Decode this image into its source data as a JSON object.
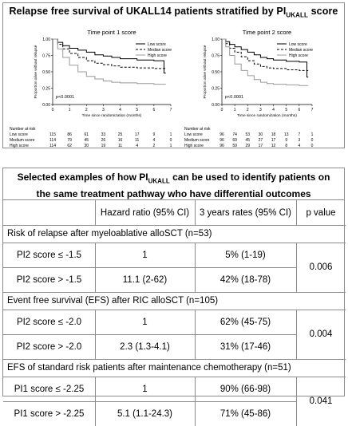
{
  "figure": {
    "title_main": "Relapse free survival of UKALL14 patients stratified by PI",
    "title_sub": "UKALL",
    "title_end": " score"
  },
  "chart_data": [
    {
      "type": "line",
      "subtitle": "Time point 1 score",
      "xlabel": "Time since randomization (months)",
      "ylabel": "Proportion alive without relapse",
      "xlim": [
        0,
        7
      ],
      "ylim": [
        0,
        1
      ],
      "x_ticks": [
        "0",
        "1",
        "2",
        "3",
        "4",
        "5",
        "6",
        "7"
      ],
      "y_ticks": [
        "0.00",
        "0.25",
        "0.50",
        "0.75",
        "1.00"
      ],
      "annotation": "p<0.0001",
      "legend": [
        "Low score",
        "Median score",
        "High score"
      ],
      "series": [
        {
          "name": "Low score",
          "style": "solid",
          "color": "#000000",
          "points": [
            [
              0,
              1.0
            ],
            [
              0.3,
              0.95
            ],
            [
              0.6,
              0.9
            ],
            [
              1,
              0.86
            ],
            [
              1.5,
              0.83
            ],
            [
              2,
              0.8
            ],
            [
              2.5,
              0.76
            ],
            [
              3,
              0.74
            ],
            [
              3.5,
              0.72
            ],
            [
              4,
              0.7
            ],
            [
              5,
              0.68
            ],
            [
              6,
              0.67
            ],
            [
              6.5,
              0.67
            ],
            [
              6.6,
              0.48
            ],
            [
              6.7,
              0.48
            ]
          ]
        },
        {
          "name": "Median score",
          "style": "dashed",
          "color": "#000000",
          "points": [
            [
              0,
              1.0
            ],
            [
              0.3,
              0.92
            ],
            [
              0.6,
              0.85
            ],
            [
              1,
              0.78
            ],
            [
              1.5,
              0.72
            ],
            [
              2,
              0.67
            ],
            [
              2.5,
              0.63
            ],
            [
              3,
              0.61
            ],
            [
              3.5,
              0.59
            ],
            [
              4,
              0.57
            ],
            [
              5,
              0.56
            ],
            [
              6,
              0.55
            ],
            [
              6.7,
              0.55
            ]
          ]
        },
        {
          "name": "High score",
          "style": "solid",
          "color": "#9a9a9a",
          "points": [
            [
              0,
              1.0
            ],
            [
              0.3,
              0.85
            ],
            [
              0.6,
              0.72
            ],
            [
              1,
              0.6
            ],
            [
              1.5,
              0.5
            ],
            [
              2,
              0.43
            ],
            [
              2.5,
              0.39
            ],
            [
              3,
              0.36
            ],
            [
              3.5,
              0.34
            ],
            [
              4,
              0.33
            ],
            [
              5,
              0.32
            ],
            [
              6,
              0.31
            ],
            [
              6.7,
              0.31
            ]
          ]
        }
      ],
      "risk_table": {
        "header": "Number at risk",
        "times": [
          "0",
          "1",
          "2",
          "3",
          "4",
          "5",
          "6",
          "7"
        ],
        "rows": [
          {
            "label": "Low score",
            "values": [
              "115",
              "86",
              "61",
              "33",
              "25",
              "17",
              "9",
              "1"
            ]
          },
          {
            "label": "Medium score",
            "values": [
              "114",
              "79",
              "45",
              "26",
              "16",
              "11",
              "4",
              "0"
            ]
          },
          {
            "label": "High score",
            "values": [
              "114",
              "62",
              "30",
              "19",
              "11",
              "4",
              "2",
              "1"
            ]
          }
        ]
      }
    },
    {
      "type": "line",
      "subtitle": "Time point 2 score",
      "xlabel": "Time since randomization (months)",
      "ylabel": "Proportion alive without relapse",
      "xlim": [
        0,
        7
      ],
      "ylim": [
        0,
        1
      ],
      "x_ticks": [
        "0",
        "1",
        "2",
        "3",
        "4",
        "5",
        "6",
        "7"
      ],
      "y_ticks": [
        "0.00",
        "0.25",
        "0.50",
        "0.75",
        "1.00"
      ],
      "annotation": "p<0.0001",
      "legend": [
        "Low score",
        "Median score",
        "High score"
      ],
      "series": [
        {
          "name": "Low score",
          "style": "solid",
          "color": "#000000",
          "points": [
            [
              0,
              1.0
            ],
            [
              0.3,
              0.96
            ],
            [
              0.6,
              0.92
            ],
            [
              1,
              0.88
            ],
            [
              1.5,
              0.84
            ],
            [
              2,
              0.8
            ],
            [
              2.5,
              0.76
            ],
            [
              3,
              0.72
            ],
            [
              3.5,
              0.7
            ],
            [
              4,
              0.68
            ],
            [
              5,
              0.66
            ],
            [
              6,
              0.65
            ],
            [
              6.5,
              0.65
            ],
            [
              6.6,
              0.42
            ],
            [
              6.7,
              0.42
            ]
          ]
        },
        {
          "name": "Median score",
          "style": "dashed",
          "color": "#000000",
          "points": [
            [
              0,
              1.0
            ],
            [
              0.3,
              0.93
            ],
            [
              0.6,
              0.86
            ],
            [
              1,
              0.8
            ],
            [
              1.5,
              0.73
            ],
            [
              2,
              0.67
            ],
            [
              2.5,
              0.62
            ],
            [
              3,
              0.58
            ],
            [
              3.5,
              0.56
            ],
            [
              4,
              0.55
            ],
            [
              5,
              0.53
            ],
            [
              6,
              0.52
            ],
            [
              6.7,
              0.52
            ]
          ]
        },
        {
          "name": "High score",
          "style": "solid",
          "color": "#9a9a9a",
          "points": [
            [
              0,
              1.0
            ],
            [
              0.3,
              0.88
            ],
            [
              0.6,
              0.75
            ],
            [
              1,
              0.62
            ],
            [
              1.5,
              0.52
            ],
            [
              2,
              0.44
            ],
            [
              2.5,
              0.38
            ],
            [
              3,
              0.34
            ],
            [
              3.5,
              0.32
            ],
            [
              4,
              0.31
            ],
            [
              5,
              0.3
            ],
            [
              6,
              0.29
            ],
            [
              6.7,
              0.29
            ]
          ]
        }
      ],
      "risk_table": {
        "header": "Number at risk",
        "times": [
          "0",
          "1",
          "2",
          "3",
          "4",
          "5",
          "6",
          "7"
        ],
        "rows": [
          {
            "label": "Low score",
            "values": [
              "96",
              "74",
              "53",
              "30",
              "18",
              "13",
              "7",
              "1"
            ]
          },
          {
            "label": "Medium score",
            "values": [
              "96",
              "69",
              "45",
              "27",
              "17",
              "9",
              "3",
              "0"
            ]
          },
          {
            "label": "High score",
            "values": [
              "96",
              "59",
              "29",
              "17",
              "12",
              "8",
              "4",
              "0"
            ]
          }
        ]
      }
    }
  ],
  "table": {
    "title_line1_a": "Selected examples of how PI",
    "title_line1_sub": "UKALL",
    "title_line1_b": " can be used to identify patients on",
    "title_line2": "the same treatment pathway who have differential outcomes",
    "col_hr": "Hazard ratio (95% CI)",
    "col_rates": "3 years rates (95% CI)",
    "col_p": "p value",
    "sections": [
      {
        "heading": "Risk of relapse after myeloablative alloSCT (n=53)",
        "p": "0.006",
        "rows": [
          {
            "label": "PI2 score ≤ -1.5",
            "hr": "1",
            "rate": "5% (1-19)"
          },
          {
            "label": "PI2 score > -1.5",
            "hr": "11.1 (2-62)",
            "rate": "42% (18-78)"
          }
        ]
      },
      {
        "heading": "Event free survival (EFS) after RIC alloSCT (n=105)",
        "p": "0.004",
        "rows": [
          {
            "label": "PI2 score ≤ -2.0",
            "hr": "1",
            "rate": "62% (45-75)"
          },
          {
            "label": "PI2 score > -2.0",
            "hr": "2.3 (1.3-4.1)",
            "rate": "31% (17-46)"
          }
        ]
      },
      {
        "heading": "EFS of standard risk patients after maintenance chemotherapy (n=51)",
        "p": "0.041",
        "rows": [
          {
            "label": "PI1 score ≤ -2.25",
            "hr": "1",
            "rate": "90% (66-98)"
          },
          {
            "label": "PI1 score > -2.25",
            "hr": "5.1 (1.1-24.3)",
            "rate": "71% (45-86)"
          }
        ]
      }
    ]
  }
}
